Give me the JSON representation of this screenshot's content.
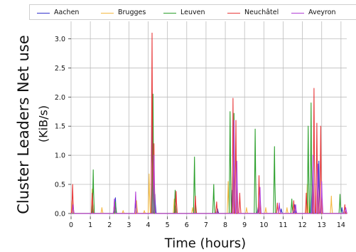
{
  "chart_data": {
    "type": "line",
    "title": "",
    "ylabel": "Cluster Leaders Net use",
    "ylabel_unit": "(KiB/s)",
    "xlabel": "Time (hours)",
    "xlim": [
      0,
      14.3
    ],
    "ylim": [
      -0.05,
      3.3
    ],
    "x_ticks": [
      "0",
      "1",
      "2",
      "3",
      "4",
      "5",
      "6",
      "7",
      "8",
      "9",
      "10",
      "11",
      "12",
      "13",
      "14"
    ],
    "y_ticks": [
      "0.0",
      "0.5",
      "1.0",
      "1.5",
      "2.0",
      "2.5",
      "3.0"
    ],
    "grid": true,
    "legend_position": "top",
    "series": [
      {
        "name": "Aachen",
        "color": "#3333cc",
        "spikes": [
          [
            1.1,
            0.08
          ],
          [
            2.3,
            0.27
          ],
          [
            3.35,
            0.2
          ],
          [
            4.2,
            1.8
          ],
          [
            4.35,
            0.33
          ],
          [
            5.4,
            0.12
          ],
          [
            7.6,
            0.08
          ],
          [
            8.35,
            0.4
          ],
          [
            9.7,
            0.1
          ],
          [
            10.9,
            0.08
          ],
          [
            11.6,
            0.15
          ],
          [
            12.5,
            0.5
          ],
          [
            12.85,
            0.9
          ],
          [
            14.05,
            0.1
          ]
        ]
      },
      {
        "name": "Brugges",
        "color": "#f5b942",
        "spikes": [
          [
            0.05,
            0.22
          ],
          [
            1.1,
            0.42
          ],
          [
            1.6,
            0.1
          ],
          [
            2.7,
            0.05
          ],
          [
            3.4,
            0.22
          ],
          [
            3.8,
            0.05
          ],
          [
            4.05,
            0.68
          ],
          [
            5.35,
            0.25
          ],
          [
            6.3,
            0.1
          ],
          [
            8.15,
            0.55
          ],
          [
            9.1,
            0.1
          ],
          [
            10.1,
            0.1
          ],
          [
            11.2,
            0.1
          ],
          [
            12.25,
            0.5
          ],
          [
            13.5,
            0.3
          ]
        ]
      },
      {
        "name": "Leuven",
        "color": "#2ca02c",
        "spikes": [
          [
            1.15,
            0.75
          ],
          [
            2.3,
            0.2
          ],
          [
            4.25,
            2.05
          ],
          [
            5.4,
            0.4
          ],
          [
            6.4,
            0.97
          ],
          [
            7.4,
            0.5
          ],
          [
            8.25,
            1.75
          ],
          [
            8.45,
            1.72
          ],
          [
            9.55,
            1.45
          ],
          [
            10.55,
            1.15
          ],
          [
            11.45,
            0.25
          ],
          [
            12.3,
            1.5
          ],
          [
            12.45,
            1.9
          ],
          [
            13.95,
            0.33
          ]
        ]
      },
      {
        "name": "Neuchâtel",
        "color": "#e8393a",
        "spikes": [
          [
            0.08,
            0.5
          ],
          [
            1.1,
            0.35
          ],
          [
            2.25,
            0.2
          ],
          [
            4.2,
            3.1
          ],
          [
            4.3,
            1.2
          ],
          [
            5.45,
            0.38
          ],
          [
            6.45,
            0.3
          ],
          [
            7.55,
            0.2
          ],
          [
            8.4,
            1.98
          ],
          [
            8.55,
            1.6
          ],
          [
            8.75,
            0.35
          ],
          [
            9.75,
            0.65
          ],
          [
            10.7,
            0.18
          ],
          [
            11.55,
            0.22
          ],
          [
            12.2,
            0.35
          ],
          [
            12.6,
            2.15
          ],
          [
            12.75,
            1.55
          ],
          [
            12.95,
            1.5
          ],
          [
            14.2,
            0.15
          ]
        ]
      },
      {
        "name": "Aveyron",
        "color": "#b23ed6",
        "spikes": [
          [
            0.1,
            0.15
          ],
          [
            2.25,
            0.25
          ],
          [
            3.35,
            0.37
          ],
          [
            4.3,
            1.0
          ],
          [
            8.45,
            1.6
          ],
          [
            8.6,
            0.9
          ],
          [
            9.8,
            0.45
          ],
          [
            10.8,
            0.18
          ],
          [
            11.65,
            0.15
          ],
          [
            12.55,
            1.0
          ],
          [
            12.8,
            0.85
          ],
          [
            13.0,
            0.55
          ],
          [
            14.25,
            0.1
          ]
        ]
      }
    ]
  }
}
